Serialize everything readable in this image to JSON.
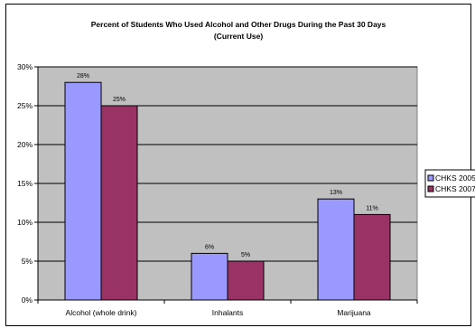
{
  "chart_data": {
    "type": "bar",
    "title": "Percent of Students Who Used Alcohol and Other Drugs During the Past 30 Days",
    "subtitle": "(Current Use)",
    "xlabel": "",
    "ylabel": "",
    "categories": [
      "Alcohol (whole drink)",
      "Inhalants",
      "Marijuana"
    ],
    "series": [
      {
        "name": "CHKS 2005",
        "values": [
          28,
          6,
          13
        ],
        "labels": [
          "28%",
          "6%",
          "13%"
        ],
        "color": "#9999FF"
      },
      {
        "name": "CHKS 2007",
        "values": [
          25,
          5,
          11
        ],
        "labels": [
          "25%",
          "5%",
          "11%"
        ],
        "color": "#993366"
      }
    ],
    "ylim": [
      0,
      30
    ],
    "yticks": [
      0,
      5,
      10,
      15,
      20,
      25,
      30
    ],
    "ytick_labels": [
      "0%",
      "5%",
      "10%",
      "15%",
      "20%",
      "25%",
      "30%"
    ],
    "plot_background": "#C0C0C0",
    "grid": true,
    "legend_position": "right"
  }
}
